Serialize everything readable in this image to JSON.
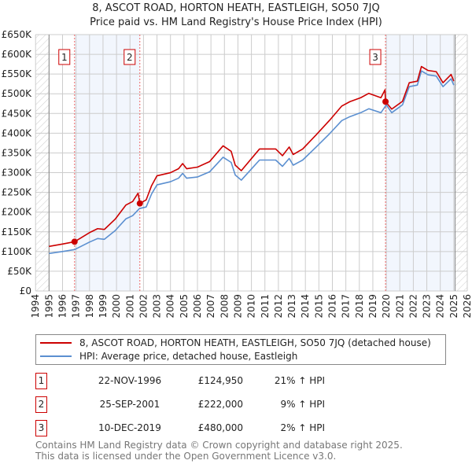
{
  "title_line1": "8, ASCOT ROAD, HORTON HEATH, EASTLEIGH, SO50 7JQ",
  "title_line2": "Price paid vs. HM Land Registry's House Price Index (HPI)",
  "legend": [
    {
      "label": "8, ASCOT ROAD, HORTON HEATH, EASTLEIGH, SO50 7JQ (detached house)",
      "color": "#cc0000"
    },
    {
      "label": "HPI: Average price, detached house, Eastleigh",
      "color": "#5b8fd0"
    }
  ],
  "sales": [
    {
      "num": "1",
      "date": "22-NOV-1996",
      "price": "£124,950",
      "hpi": "21% ↑ HPI",
      "year": 1996.89,
      "value": 124950
    },
    {
      "num": "2",
      "date": "25-SEP-2001",
      "price": "£222,000",
      "hpi": "9% ↑ HPI",
      "year": 2001.73,
      "value": 222000
    },
    {
      "num": "3",
      "date": "10-DEC-2019",
      "price": "£480,000",
      "hpi": "2% ↑ HPI",
      "year": 2019.94,
      "value": 480000
    }
  ],
  "footer": {
    "line1": "Contains HM Land Registry data © Crown copyright and database right 2025.",
    "line2": "This data is licensed under the Open Government Licence v3.0."
  },
  "chart_data": {
    "type": "line",
    "title": "8, ASCOT ROAD, HORTON HEATH, EASTLEIGH, SO50 7JQ — Price paid vs. HM Land Registry's House Price Index (HPI)",
    "xlim": [
      1994,
      2026
    ],
    "ylim": [
      0,
      650000
    ],
    "grid": true,
    "data_start": 1995,
    "data_end": 2025.1,
    "x_ticks": [
      "1994",
      "1995",
      "1996",
      "1997",
      "1998",
      "1999",
      "2000",
      "2001",
      "2002",
      "2003",
      "2004",
      "2005",
      "2006",
      "2007",
      "2008",
      "2009",
      "2010",
      "2011",
      "2012",
      "2013",
      "2014",
      "2015",
      "2016",
      "2017",
      "2018",
      "2019",
      "2020",
      "2021",
      "2022",
      "2023",
      "2024",
      "2025",
      "2026"
    ],
    "y_ticks": [
      {
        "v": 0,
        "label": "£0"
      },
      {
        "v": 50000,
        "label": "£50K"
      },
      {
        "v": 100000,
        "label": "£100K"
      },
      {
        "v": 150000,
        "label": "£150K"
      },
      {
        "v": 200000,
        "label": "£200K"
      },
      {
        "v": 250000,
        "label": "£250K"
      },
      {
        "v": 300000,
        "label": "£300K"
      },
      {
        "v": 350000,
        "label": "£350K"
      },
      {
        "v": 400000,
        "label": "£400K"
      },
      {
        "v": 450000,
        "label": "£450K"
      },
      {
        "v": 500000,
        "label": "£500K"
      },
      {
        "v": 550000,
        "label": "£550K"
      },
      {
        "v": 600000,
        "label": "£600K"
      },
      {
        "v": 650000,
        "label": "£650K"
      }
    ],
    "series": [
      {
        "name": "8, ASCOT ROAD, HORTON HEATH, EASTLEIGH, SO50 7JQ (detached house)",
        "color": "#cc0000",
        "points": [
          [
            1995.0,
            113
          ],
          [
            1996.0,
            119
          ],
          [
            1996.9,
            125
          ],
          [
            1998.0,
            148
          ],
          [
            1998.6,
            158
          ],
          [
            1999.1,
            156
          ],
          [
            1999.9,
            182
          ],
          [
            2000.7,
            218
          ],
          [
            2001.2,
            227
          ],
          [
            2001.6,
            248
          ],
          [
            2001.73,
            222
          ],
          [
            2002.2,
            231
          ],
          [
            2002.6,
            267
          ],
          [
            2003.0,
            292
          ],
          [
            2004.0,
            300
          ],
          [
            2004.6,
            310
          ],
          [
            2004.9,
            323
          ],
          [
            2005.2,
            310
          ],
          [
            2006.0,
            314
          ],
          [
            2006.9,
            328
          ],
          [
            2007.9,
            368
          ],
          [
            2008.5,
            354
          ],
          [
            2008.8,
            319
          ],
          [
            2009.25,
            305
          ],
          [
            2010.6,
            360
          ],
          [
            2011.8,
            360
          ],
          [
            2012.3,
            343
          ],
          [
            2012.8,
            365
          ],
          [
            2013.1,
            346
          ],
          [
            2013.8,
            360
          ],
          [
            2014.8,
            396
          ],
          [
            2015.8,
            433
          ],
          [
            2016.7,
            469
          ],
          [
            2017.3,
            480
          ],
          [
            2018.1,
            490
          ],
          [
            2018.7,
            501
          ],
          [
            2019.6,
            490
          ],
          [
            2019.9,
            510
          ],
          [
            2019.94,
            480
          ],
          [
            2020.4,
            461
          ],
          [
            2021.2,
            481
          ],
          [
            2021.7,
            528
          ],
          [
            2022.3,
            532
          ],
          [
            2022.6,
            569
          ],
          [
            2023.1,
            559
          ],
          [
            2023.7,
            556
          ],
          [
            2024.2,
            528
          ],
          [
            2024.8,
            549
          ],
          [
            2025.0,
            532
          ]
        ]
      },
      {
        "name": "HPI: Average price, detached house, Eastleigh",
        "color": "#5b8fd0",
        "points": [
          [
            1995.0,
            95
          ],
          [
            1996.0,
            100
          ],
          [
            1996.9,
            105
          ],
          [
            1998.0,
            124
          ],
          [
            1998.6,
            133
          ],
          [
            1999.1,
            131
          ],
          [
            1999.9,
            153
          ],
          [
            2000.7,
            183
          ],
          [
            2001.2,
            191
          ],
          [
            2001.7,
            209
          ],
          [
            2002.2,
            213
          ],
          [
            2002.6,
            246
          ],
          [
            2003.0,
            269
          ],
          [
            2004.0,
            277
          ],
          [
            2004.6,
            286
          ],
          [
            2004.9,
            298
          ],
          [
            2005.2,
            286
          ],
          [
            2006.0,
            289
          ],
          [
            2006.9,
            302
          ],
          [
            2007.9,
            339
          ],
          [
            2008.5,
            326
          ],
          [
            2008.8,
            294
          ],
          [
            2009.25,
            281
          ],
          [
            2010.6,
            332
          ],
          [
            2011.8,
            332
          ],
          [
            2012.3,
            316
          ],
          [
            2012.8,
            336
          ],
          [
            2013.1,
            319
          ],
          [
            2013.8,
            332
          ],
          [
            2014.8,
            365
          ],
          [
            2015.8,
            399
          ],
          [
            2016.7,
            432
          ],
          [
            2017.3,
            442
          ],
          [
            2018.1,
            452
          ],
          [
            2018.7,
            462
          ],
          [
            2019.6,
            452
          ],
          [
            2020.0,
            472
          ],
          [
            2020.4,
            452
          ],
          [
            2021.2,
            472
          ],
          [
            2021.7,
            518
          ],
          [
            2022.3,
            522
          ],
          [
            2022.6,
            558
          ],
          [
            2023.1,
            548
          ],
          [
            2023.7,
            545
          ],
          [
            2024.2,
            518
          ],
          [
            2024.8,
            538
          ],
          [
            2025.0,
            522
          ]
        ]
      }
    ],
    "value_units": "points in thousands of GBP"
  }
}
